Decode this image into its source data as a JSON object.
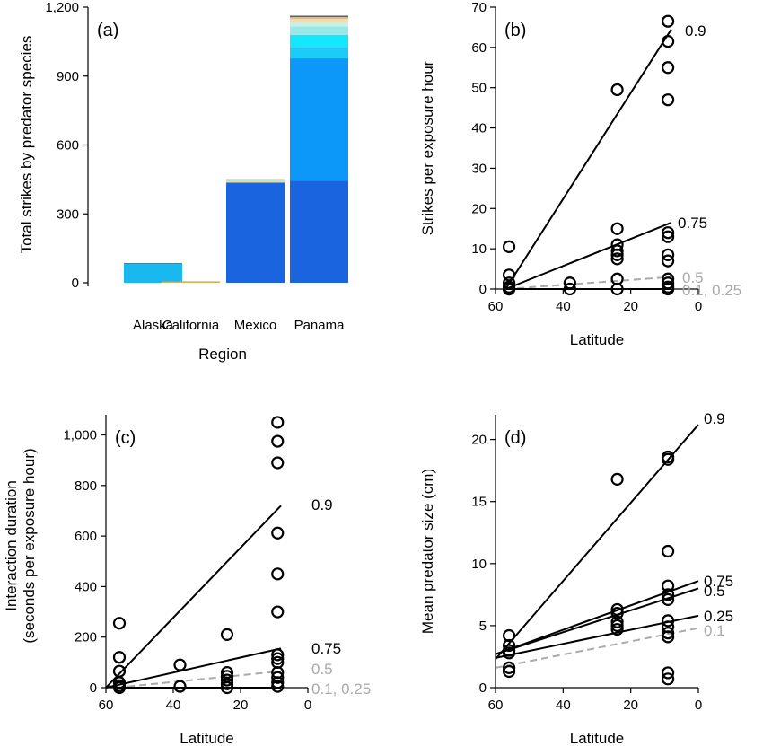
{
  "chart_data": [
    {
      "type": "bar",
      "panel_label": "(a)",
      "xlabel": "Region",
      "ylabel": "Total strikes by predator species",
      "categories": [
        "Alaska",
        "California",
        "Mexico",
        "Panama"
      ],
      "ylim": [
        0,
        1200
      ],
      "yticks": [
        0,
        300,
        600,
        900,
        1200
      ],
      "ytick_labels": [
        "0",
        "300",
        "600",
        "900",
        "1,200"
      ],
      "stack_segments": [
        {
          "category": "Alaska",
          "value": 83,
          "color": "#19B8F0"
        },
        {
          "category": "Alaska",
          "value": 3,
          "color": "#5B8A4A"
        },
        {
          "category": "California",
          "value": 4,
          "color": "#E0C070"
        },
        {
          "category": "California",
          "value": 2,
          "color": "#D2A040"
        },
        {
          "category": "Mexico",
          "value": 436,
          "color": "#1A64E0"
        },
        {
          "category": "Mexico",
          "value": 10,
          "color": "#E8D8A8"
        },
        {
          "category": "Mexico",
          "value": 6,
          "color": "#A8D8C8"
        },
        {
          "category": "Panama",
          "value": 445,
          "color": "#1A64E0"
        },
        {
          "category": "Panama",
          "value": 532,
          "color": "#0C98F8"
        },
        {
          "category": "Panama",
          "value": 50,
          "color": "#1CCCF8"
        },
        {
          "category": "Panama",
          "value": 52,
          "color": "#14E8FF"
        },
        {
          "category": "Panama",
          "value": 38,
          "color": "#98E8E8"
        },
        {
          "category": "Panama",
          "value": 14,
          "color": "#C8F0E8"
        },
        {
          "category": "Panama",
          "value": 18,
          "color": "#E8E0B0"
        },
        {
          "category": "Panama",
          "value": 8,
          "color": "#E8B880"
        },
        {
          "category": "Panama",
          "value": 6,
          "color": "#606060"
        }
      ]
    },
    {
      "type": "scatter",
      "panel_label": "(b)",
      "xlabel": "Latitude",
      "ylabel": "Strikes per exposure hour",
      "xlim": [
        60,
        0
      ],
      "ylim": [
        0,
        70
      ],
      "xticks": [
        60,
        40,
        20,
        0
      ],
      "yticks": [
        0,
        10,
        20,
        30,
        40,
        50,
        60,
        70
      ],
      "points": [
        [
          56,
          10.5
        ],
        [
          56,
          3.5
        ],
        [
          56,
          1.5
        ],
        [
          56,
          0.5
        ],
        [
          56,
          0
        ],
        [
          56,
          0
        ],
        [
          56,
          0
        ],
        [
          38,
          1.5
        ],
        [
          38,
          0
        ],
        [
          24,
          49.5
        ],
        [
          24,
          15
        ],
        [
          24,
          11
        ],
        [
          24,
          9.5
        ],
        [
          24,
          8.5
        ],
        [
          24,
          7.5
        ],
        [
          24,
          2.5
        ],
        [
          24,
          0
        ],
        [
          9,
          66.5
        ],
        [
          9,
          61.5
        ],
        [
          9,
          55
        ],
        [
          9,
          47
        ],
        [
          9,
          14
        ],
        [
          9,
          13
        ],
        [
          9,
          8.5
        ],
        [
          9,
          7
        ],
        [
          9,
          2.5
        ],
        [
          9,
          1.5
        ],
        [
          9,
          0.5
        ],
        [
          9,
          0
        ]
      ],
      "lines": [
        {
          "label": "0.9",
          "x": [
            57,
            8
          ],
          "y": [
            0,
            64.5
          ],
          "color": "#000000",
          "dashed": false
        },
        {
          "label": "0.75",
          "x": [
            57,
            8
          ],
          "y": [
            0,
            16.5
          ],
          "color": "#000000",
          "dashed": false
        },
        {
          "label": "0.5",
          "x": [
            57,
            8
          ],
          "y": [
            0,
            3
          ],
          "color": "#AAAAAA",
          "dashed": true
        },
        {
          "label": "0.1, 0.25",
          "x": [
            57,
            8
          ],
          "y": [
            0,
            0
          ],
          "color": "#000000",
          "dashed": false
        }
      ],
      "line_label_colors": {
        "0.9": "#000000",
        "0.75": "#000000",
        "0.5": "#AAAAAA",
        "0.1, 0.25": "#AAAAAA"
      }
    },
    {
      "type": "scatter",
      "panel_label": "(c)",
      "xlabel": "Latitude",
      "ylabel": "Interaction duration (seconds per exposure hour)",
      "ylabel_lines": [
        "Interaction duration",
        "(seconds per exposure hour)"
      ],
      "xlim": [
        60,
        0
      ],
      "ylim": [
        0,
        1080
      ],
      "xticks": [
        60,
        40,
        20,
        0
      ],
      "yticks": [
        0,
        200,
        400,
        600,
        800,
        1000
      ],
      "ytick_labels": [
        "0",
        "200",
        "400",
        "600",
        "800",
        "1,000"
      ],
      "points": [
        [
          56,
          255
        ],
        [
          56,
          120
        ],
        [
          56,
          65
        ],
        [
          56,
          20
        ],
        [
          56,
          8
        ],
        [
          56,
          0
        ],
        [
          38,
          90
        ],
        [
          38,
          5
        ],
        [
          24,
          210
        ],
        [
          24,
          60
        ],
        [
          24,
          45
        ],
        [
          24,
          30
        ],
        [
          24,
          15
        ],
        [
          24,
          0
        ],
        [
          9,
          1050
        ],
        [
          9,
          975
        ],
        [
          9,
          890
        ],
        [
          9,
          612
        ],
        [
          9,
          450
        ],
        [
          9,
          300
        ],
        [
          9,
          130
        ],
        [
          9,
          115
        ],
        [
          9,
          100
        ],
        [
          9,
          60
        ],
        [
          9,
          40
        ],
        [
          9,
          20
        ],
        [
          9,
          5
        ]
      ],
      "lines": [
        {
          "label": "0.9",
          "x": [
            60,
            8
          ],
          "y": [
            0,
            720
          ],
          "color": "#000000",
          "dashed": false
        },
        {
          "label": "0.75",
          "x": [
            60,
            8
          ],
          "y": [
            0,
            155
          ],
          "color": "#000000",
          "dashed": false
        },
        {
          "label": "0.5",
          "x": [
            57,
            8
          ],
          "y": [
            0,
            65
          ],
          "color": "#AAAAAA",
          "dashed": true
        },
        {
          "label": "0.1, 0.25",
          "x": [
            57,
            8
          ],
          "y": [
            0,
            0
          ],
          "color": "#000000",
          "dashed": false
        }
      ],
      "line_label_colors": {
        "0.9": "#000000",
        "0.75": "#000000",
        "0.5": "#AAAAAA",
        "0.1, 0.25": "#AAAAAA"
      }
    },
    {
      "type": "scatter",
      "panel_label": "(d)",
      "xlabel": "Latitude",
      "ylabel": "Mean predator size (cm)",
      "xlim": [
        60,
        0
      ],
      "ylim": [
        0,
        22
      ],
      "xticks": [
        60,
        40,
        20,
        0
      ],
      "yticks": [
        0,
        5,
        10,
        15,
        20
      ],
      "points": [
        [
          56,
          4.2
        ],
        [
          56,
          3.4
        ],
        [
          56,
          3.0
        ],
        [
          56,
          2.8
        ],
        [
          56,
          1.6
        ],
        [
          56,
          1.3
        ],
        [
          24,
          16.8
        ],
        [
          24,
          6.3
        ],
        [
          24,
          6.0
        ],
        [
          24,
          5.3
        ],
        [
          24,
          5.0
        ],
        [
          24,
          4.7
        ],
        [
          9,
          18.6
        ],
        [
          9,
          18.4
        ],
        [
          9,
          11.0
        ],
        [
          9,
          8.2
        ],
        [
          9,
          7.5
        ],
        [
          9,
          7.1
        ],
        [
          9,
          5.4
        ],
        [
          9,
          4.9
        ],
        [
          9,
          4.4
        ],
        [
          9,
          4.1
        ],
        [
          9,
          1.2
        ],
        [
          9,
          0.7
        ]
      ],
      "lines": [
        {
          "label": "0.9",
          "x": [
            60,
            0
          ],
          "y": [
            2.3,
            21.2
          ],
          "color": "#000000",
          "dashed": false
        },
        {
          "label": "0.75",
          "x": [
            60,
            0
          ],
          "y": [
            2.7,
            8.6
          ],
          "color": "#000000",
          "dashed": false
        },
        {
          "label": "0.5",
          "x": [
            60,
            0
          ],
          "y": [
            2.7,
            8.0
          ],
          "color": "#000000",
          "dashed": false
        },
        {
          "label": "0.25",
          "x": [
            60,
            0
          ],
          "y": [
            2.4,
            5.8
          ],
          "color": "#000000",
          "dashed": false
        },
        {
          "label": "0.1",
          "x": [
            60,
            0
          ],
          "y": [
            1.6,
            4.8
          ],
          "color": "#AAAAAA",
          "dashed": true
        }
      ],
      "line_label_colors": {
        "0.9": "#000000",
        "0.75": "#000000",
        "0.5": "#000000",
        "0.25": "#000000",
        "0.1": "#AAAAAA"
      }
    }
  ]
}
